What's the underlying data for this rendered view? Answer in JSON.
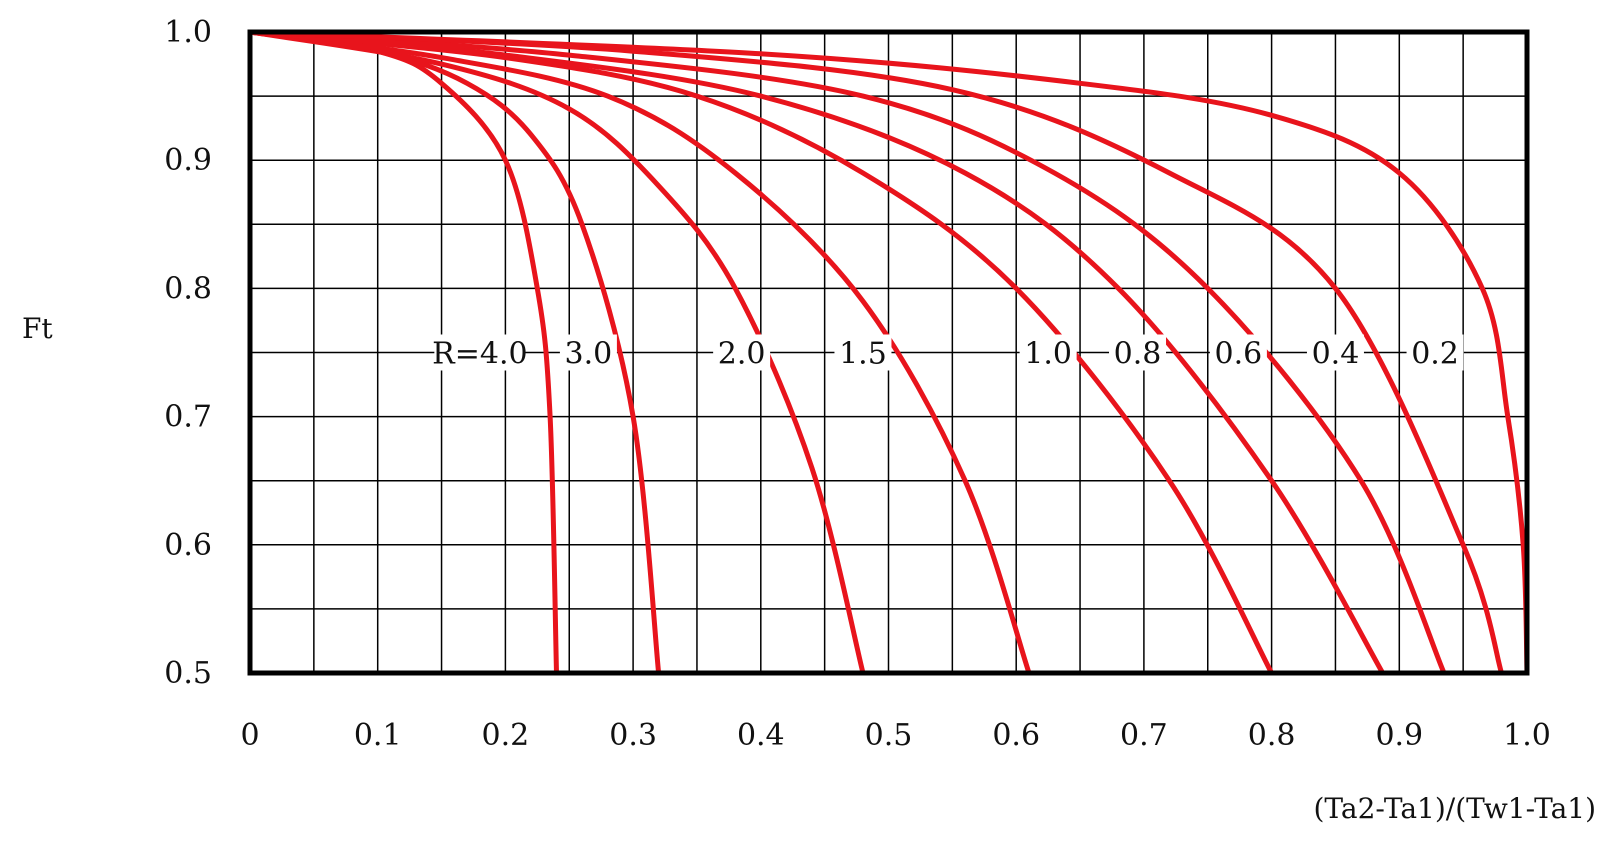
{
  "chart_data": {
    "type": "line",
    "title": "",
    "xlabel": "(Ta2-Ta1)/(Tw1-Ta1)",
    "ylabel": "Ft",
    "xlim": [
      0,
      1.0
    ],
    "ylim": [
      0.5,
      1.0
    ],
    "x_ticks": [
      "0",
      "0.1",
      "0.2",
      "0.3",
      "0.4",
      "0.5",
      "0.6",
      "0.7",
      "0.8",
      "0.9",
      "1.0"
    ],
    "y_ticks": [
      "1.0",
      "0.9",
      "0.8",
      "0.7",
      "0.6",
      "0.5"
    ],
    "grid": true,
    "line_color": "#e8141c",
    "series": [
      {
        "label": "R=4.0",
        "x": [
          0,
          0.1,
          0.15,
          0.2,
          0.225,
          0.235,
          0.24
        ],
        "y": [
          1.0,
          0.985,
          0.96,
          0.9,
          0.8,
          0.7,
          0.5
        ]
      },
      {
        "label": "3.0",
        "x": [
          0,
          0.1,
          0.17,
          0.22,
          0.26,
          0.3,
          0.32
        ],
        "y": [
          1.0,
          0.985,
          0.96,
          0.92,
          0.85,
          0.7,
          0.5
        ]
      },
      {
        "label": "2.0",
        "x": [
          0,
          0.15,
          0.25,
          0.32,
          0.38,
          0.44,
          0.48
        ],
        "y": [
          1.0,
          0.975,
          0.94,
          0.88,
          0.8,
          0.66,
          0.5
        ]
      },
      {
        "label": "1.5",
        "x": [
          0,
          0.15,
          0.28,
          0.38,
          0.48,
          0.56,
          0.61
        ],
        "y": [
          1.0,
          0.98,
          0.95,
          0.89,
          0.79,
          0.65,
          0.5
        ]
      },
      {
        "label": "1.0",
        "x": [
          0,
          0.2,
          0.35,
          0.48,
          0.6,
          0.72,
          0.8
        ],
        "y": [
          1.0,
          0.98,
          0.95,
          0.89,
          0.8,
          0.65,
          0.5
        ]
      },
      {
        "label": "0.8",
        "x": [
          0,
          0.2,
          0.4,
          0.56,
          0.68,
          0.8,
          0.887
        ],
        "y": [
          1.0,
          0.982,
          0.95,
          0.89,
          0.8,
          0.65,
          0.5
        ]
      },
      {
        "label": "0.6",
        "x": [
          0,
          0.25,
          0.48,
          0.63,
          0.75,
          0.87,
          0.935
        ],
        "y": [
          1.0,
          0.982,
          0.95,
          0.89,
          0.8,
          0.65,
          0.5
        ]
      },
      {
        "label": "0.4",
        "x": [
          0,
          0.3,
          0.55,
          0.72,
          0.85,
          0.95,
          0.98
        ],
        "y": [
          1.0,
          0.985,
          0.955,
          0.89,
          0.8,
          0.6,
          0.5
        ]
      },
      {
        "label": "0.2",
        "x": [
          0,
          0.4,
          0.65,
          0.8,
          0.9,
          0.965,
          0.985,
          0.997,
          1.0
        ],
        "y": [
          1.0,
          0.983,
          0.96,
          0.935,
          0.89,
          0.8,
          0.7,
          0.6,
          0.5
        ]
      }
    ],
    "label_row_y": 0.75,
    "labels": [
      {
        "text": "R=4.0",
        "x": 0.18
      },
      {
        "text": "3.0",
        "x": 0.265
      },
      {
        "text": "2.0",
        "x": 0.385
      },
      {
        "text": "1.5",
        "x": 0.48
      },
      {
        "text": "1.0",
        "x": 0.625
      },
      {
        "text": "0.8",
        "x": 0.695
      },
      {
        "text": "0.6",
        "x": 0.774
      },
      {
        "text": "0.4",
        "x": 0.85
      },
      {
        "text": "0.2",
        "x": 0.928
      }
    ]
  }
}
